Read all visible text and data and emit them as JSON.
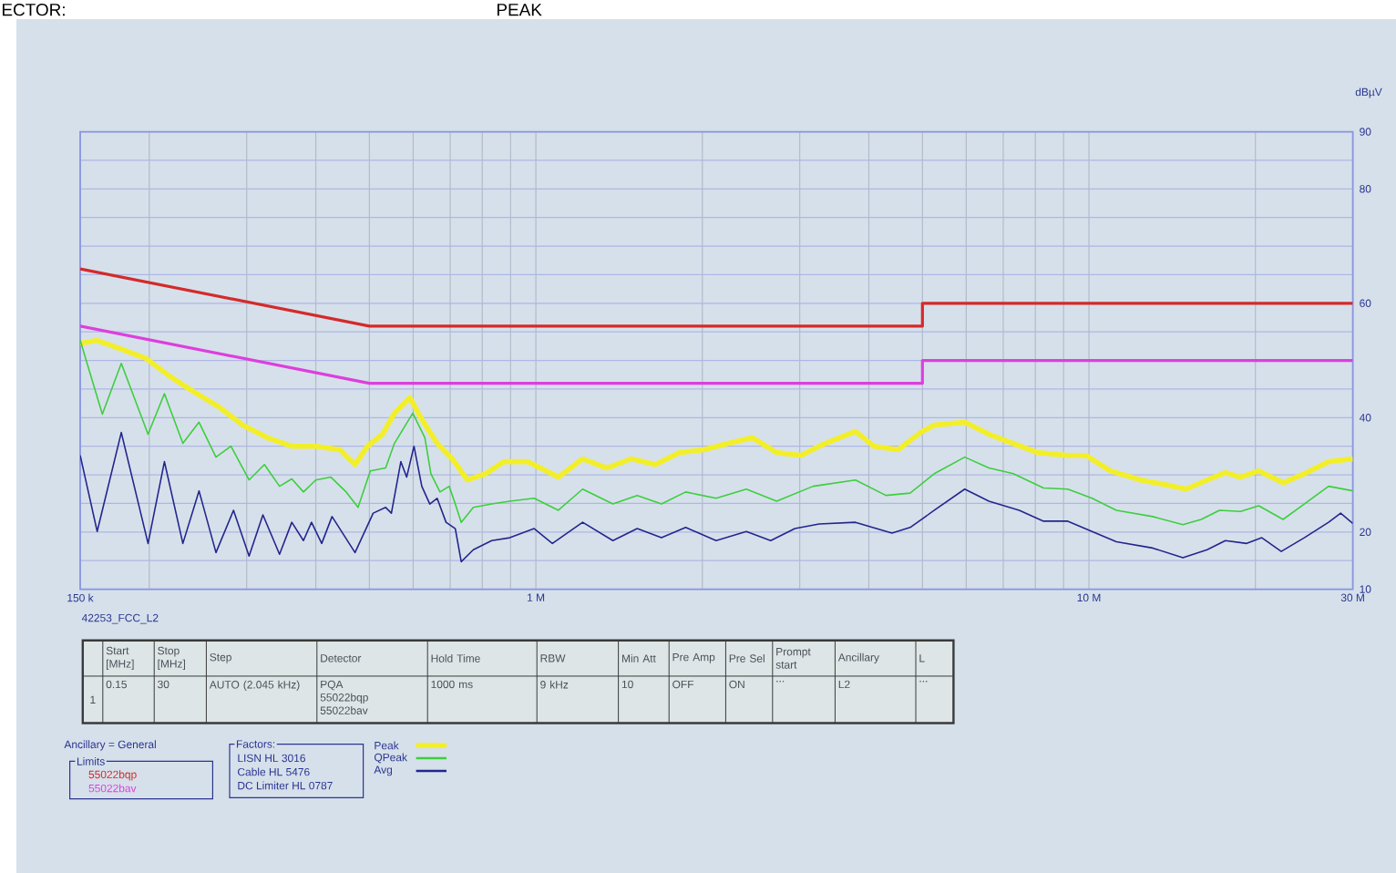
{
  "chart_data": {
    "type": "line",
    "ylabel": "dBµV",
    "log": "x",
    "grid": true,
    "legend": "bottom",
    "legend_title": "Limits",
    "xlim": [
      0.15,
      30
    ],
    "xticks": [
      {
        "value": 0.15,
        "label": "150 k"
      },
      {
        "value": 0.2,
        "label": null
      },
      {
        "value": 0.3,
        "label": null
      },
      {
        "value": 0.4,
        "label": null
      },
      {
        "value": 0.5,
        "label": null
      },
      {
        "value": 0.6,
        "label": null
      },
      {
        "value": 0.7,
        "label": null
      },
      {
        "value": 0.8,
        "label": null
      },
      {
        "value": 0.9,
        "label": null
      },
      {
        "value": 1,
        "label": "1 M"
      },
      {
        "value": 2,
        "label": null
      },
      {
        "value": 3,
        "label": null
      },
      {
        "value": 4,
        "label": null
      },
      {
        "value": 5,
        "label": null
      },
      {
        "value": 6,
        "label": null
      },
      {
        "value": 7,
        "label": null
      },
      {
        "value": 8,
        "label": null
      },
      {
        "value": 9,
        "label": null
      },
      {
        "value": 10,
        "label": "10 M"
      },
      {
        "value": 20,
        "label": null
      },
      {
        "value": 30,
        "label": "30 M"
      }
    ],
    "ylim": [
      10,
      90
    ],
    "yticks": [
      10,
      {
        "value": 15,
        "label": null
      },
      20,
      {
        "value": 25,
        "label": null
      },
      {
        "value": 30,
        "label": null
      },
      {
        "value": 35,
        "label": null
      },
      40,
      {
        "value": 45,
        "label": null
      },
      {
        "value": 50,
        "label": null
      },
      {
        "value": 55,
        "label": null
      },
      60,
      {
        "value": 65,
        "label": null
      },
      {
        "value": 70,
        "label": null
      },
      {
        "value": 75,
        "label": null
      },
      80,
      {
        "value": 85,
        "label": null
      },
      90
    ],
    "annotations": [
      "ECTOR:",
      "PEAK",
      "42253_FCC_L2",
      "Start [MHz]",
      "Stop [MHz]",
      "Step",
      "Detector",
      "Hold Time",
      "RBW",
      "Min Att",
      "Pre Amp",
      "Pre Sel",
      "Prompt start",
      "Ancillary",
      "L",
      "1",
      "0.15",
      "30",
      "AUTO (2.045 kHz)",
      "PQA 55022bqp 55022bav",
      "1000 ms",
      "9 kHz",
      "10",
      "OFF",
      "ON",
      "...",
      "L2",
      "...",
      "Ancillary = General",
      "Factors:",
      "LISN HL 3016",
      "Cable HL 5476",
      "DC Limiter HL 0787"
    ],
    "series": [
      {
        "name": "Peak",
        "color": "#f2ef2a",
        "x": [
          0.15,
          0.161,
          0.178,
          0.197,
          0.218,
          0.241,
          0.267,
          0.295,
          0.327,
          0.362,
          0.4,
          0.442,
          0.471,
          0.496,
          0.528,
          0.555,
          0.592,
          0.622,
          0.663,
          0.706,
          0.752,
          0.811,
          0.875,
          0.968,
          1.044,
          1.098,
          1.215,
          1.344,
          1.487,
          1.645,
          1.82,
          2.013,
          2.227,
          2.464,
          2.725,
          3.015,
          3.336,
          3.784,
          4.082,
          4.516,
          4.995,
          5.254,
          5.962,
          6.596,
          7.296,
          8.07,
          9.157,
          9.876,
          10.93,
          12.4,
          13.72,
          14.98,
          16.36,
          17.65,
          18.8,
          20.28,
          22.44,
          24.51,
          27.12,
          30
        ],
        "values": [
          53.0,
          53.5,
          52.0,
          50.4,
          47.2,
          44.5,
          41.9,
          38.7,
          36.5,
          35.0,
          35.0,
          34.4,
          31.8,
          35.0,
          37.1,
          40.8,
          43.5,
          39.7,
          35.5,
          32.8,
          29.1,
          30.2,
          32.3,
          32.3,
          30.7,
          29.6,
          32.8,
          31.2,
          32.8,
          31.8,
          33.9,
          34.4,
          35.5,
          36.5,
          33.9,
          33.4,
          35.5,
          37.6,
          35.0,
          34.4,
          37.6,
          38.7,
          39.2,
          37.1,
          35.5,
          33.9,
          33.4,
          33.4,
          30.7,
          29.1,
          28.3,
          27.5,
          29.1,
          30.4,
          29.6,
          30.7,
          28.6,
          30.2,
          32.3,
          32.8
        ]
      },
      {
        "name": "QPeak",
        "color": "#3ccf3c",
        "x": [
          0.15,
          0.1645,
          0.178,
          0.199,
          0.213,
          0.23,
          0.246,
          0.264,
          0.281,
          0.303,
          0.323,
          0.344,
          0.362,
          0.38,
          0.4,
          0.426,
          0.454,
          0.477,
          0.502,
          0.535,
          0.555,
          0.599,
          0.63,
          0.646,
          0.671,
          0.697,
          0.715,
          0.733,
          0.771,
          0.832,
          0.897,
          0.993,
          1.098,
          1.215,
          1.378,
          1.525,
          1.687,
          1.866,
          2.118,
          2.402,
          2.725,
          3.171,
          3.784,
          4.294,
          4.75,
          5.254,
          5.962,
          6.596,
          7.296,
          8.277,
          9.157,
          10.13,
          11.21,
          13.04,
          14.79,
          15.96,
          17.22,
          18.8,
          20.28,
          22.44,
          24.51,
          27.12,
          30
        ],
        "values": [
          53.5,
          40.6,
          49.5,
          37.1,
          44.2,
          35.5,
          39.2,
          33.1,
          35.0,
          29.1,
          31.8,
          28.0,
          29.3,
          27.0,
          29.1,
          29.6,
          27.0,
          24.3,
          30.7,
          31.2,
          35.5,
          40.8,
          36.5,
          30.2,
          27.0,
          28.0,
          24.9,
          21.7,
          24.3,
          24.9,
          25.4,
          25.9,
          23.8,
          27.5,
          24.9,
          26.4,
          24.9,
          27.0,
          25.9,
          27.5,
          25.4,
          28.0,
          29.1,
          26.4,
          26.8,
          30.2,
          33.1,
          31.2,
          30.2,
          27.7,
          27.5,
          25.9,
          23.8,
          22.7,
          21.3,
          22.2,
          23.8,
          23.6,
          24.6,
          22.2,
          24.9,
          28.0,
          27.2
        ]
      },
      {
        "name": "Avg",
        "color": "#23268c",
        "x": [
          0.15,
          0.161,
          0.178,
          0.199,
          0.213,
          0.23,
          0.246,
          0.264,
          0.284,
          0.303,
          0.321,
          0.344,
          0.362,
          0.38,
          0.393,
          0.41,
          0.428,
          0.471,
          0.508,
          0.535,
          0.548,
          0.57,
          0.584,
          0.602,
          0.622,
          0.643,
          0.663,
          0.688,
          0.715,
          0.733,
          0.771,
          0.832,
          0.897,
          0.993,
          1.071,
          1.215,
          1.378,
          1.525,
          1.687,
          1.866,
          2.118,
          2.402,
          2.658,
          2.94,
          3.252,
          3.784,
          4.404,
          4.75,
          5.254,
          5.962,
          6.596,
          7.482,
          8.277,
          9.157,
          10.13,
          11.21,
          13.04,
          14.79,
          16.36,
          17.65,
          19.29,
          20.54,
          22.27,
          24.51,
          27.12,
          28.52,
          30
        ],
        "values": [
          33.4,
          20.1,
          37.4,
          18.0,
          32.3,
          18.0,
          27.2,
          16.4,
          23.8,
          15.8,
          23.0,
          16.1,
          21.7,
          18.5,
          21.7,
          18.0,
          22.7,
          16.4,
          23.3,
          24.3,
          23.3,
          32.3,
          29.6,
          35.0,
          28.0,
          24.9,
          25.9,
          21.7,
          20.6,
          14.8,
          16.9,
          18.5,
          19.0,
          20.6,
          18.0,
          21.7,
          18.5,
          20.6,
          19.0,
          20.8,
          18.5,
          20.1,
          18.5,
          20.6,
          21.4,
          21.7,
          19.8,
          20.8,
          23.8,
          27.5,
          25.4,
          23.8,
          21.9,
          21.9,
          20.1,
          18.3,
          17.2,
          15.5,
          16.9,
          18.5,
          18.0,
          19.0,
          16.6,
          19.0,
          21.7,
          23.3,
          21.5
        ]
      },
      {
        "name": "55022bqp",
        "color": "#d42a2a",
        "x": [
          0.15,
          0.5,
          5,
          5,
          30
        ],
        "values": [
          66,
          56,
          56,
          60,
          60
        ]
      },
      {
        "name": "55022bav",
        "color": "#dd3fdd",
        "x": [
          0.15,
          0.5,
          5,
          5,
          30
        ],
        "values": [
          56,
          46,
          46,
          50,
          50
        ]
      }
    ]
  }
}
